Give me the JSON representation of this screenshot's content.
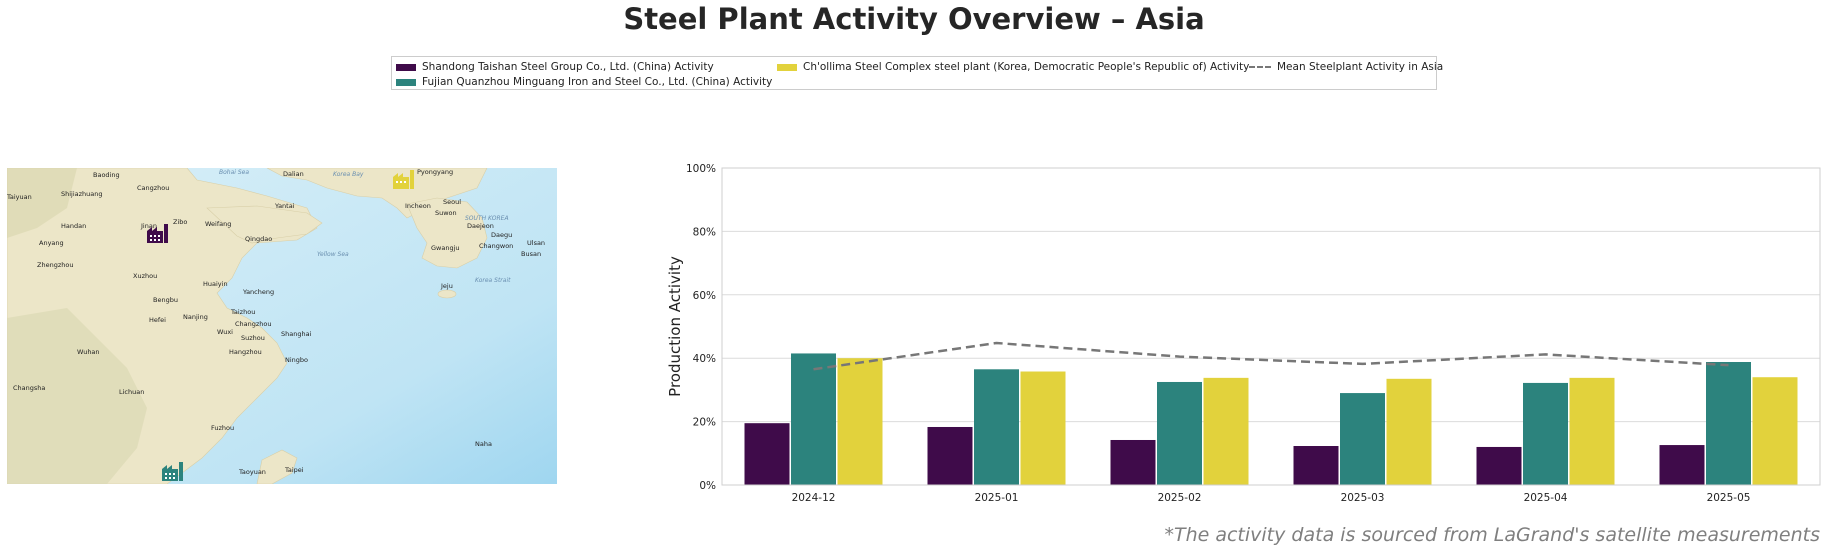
{
  "title": "Steel Plant Activity Overview – Asia",
  "footnote": "*The activity data is sourced from LaGrand's satellite measurements",
  "legend": {
    "items": [
      {
        "label": "Shandong Taishan Steel Group Co., Ltd. (China) Activity",
        "color": "#3f0b4a",
        "kind": "bar"
      },
      {
        "label": "Fujian Quanzhou Minguang Iron and Steel Co., Ltd. (China) Activity",
        "color": "#2c837d",
        "kind": "bar"
      },
      {
        "label": "Ch'ollima Steel Complex steel plant (Korea, Democratic People's Republic of) Activity",
        "color": "#e2d23c",
        "kind": "bar"
      },
      {
        "label": "Mean Steelplant Activity in Asia",
        "color": "#777777",
        "kind": "dashed-line"
      }
    ]
  },
  "map": {
    "labels": [
      {
        "text": "Baoding"
      },
      {
        "text": "Shijiazhuang"
      },
      {
        "text": "Cangzhou"
      },
      {
        "text": "Taiyuan"
      },
      {
        "text": "Jinan"
      },
      {
        "text": "Zibo"
      },
      {
        "text": "Weifang"
      },
      {
        "text": "Yantai"
      },
      {
        "text": "Qingdao"
      },
      {
        "text": "Handan"
      },
      {
        "text": "Anyang"
      },
      {
        "text": "Zhengzhou"
      },
      {
        "text": "Xuzhou"
      },
      {
        "text": "Huaiyin"
      },
      {
        "text": "Yancheng"
      },
      {
        "text": "Bengbu"
      },
      {
        "text": "Hefei"
      },
      {
        "text": "Nanjing"
      },
      {
        "text": "Taizhou"
      },
      {
        "text": "Changzhou"
      },
      {
        "text": "Wuxi"
      },
      {
        "text": "Suzhou"
      },
      {
        "text": "Shanghai"
      },
      {
        "text": "Hangzhou"
      },
      {
        "text": "Ningbo"
      },
      {
        "text": "Wuhan"
      },
      {
        "text": "Changsha"
      },
      {
        "text": "Lichuan"
      },
      {
        "text": "Fuzhou"
      },
      {
        "text": "Taoyuan"
      },
      {
        "text": "Taipei"
      },
      {
        "text": "Pyongyang"
      },
      {
        "text": "Incheon"
      },
      {
        "text": "Seoul"
      },
      {
        "text": "Suwon"
      },
      {
        "text": "SOUTH KOREA"
      },
      {
        "text": "Daejeon"
      },
      {
        "text": "Daegu"
      },
      {
        "text": "Gwangju"
      },
      {
        "text": "Changwon"
      },
      {
        "text": "Ulsan"
      },
      {
        "text": "Busan"
      },
      {
        "text": "Jeju"
      },
      {
        "text": "Naha"
      },
      {
        "text": "Dalian"
      },
      {
        "text": "Bohai Sea"
      },
      {
        "text": "Korea Bay"
      },
      {
        "text": "Yellow Sea"
      },
      {
        "text": "Korea Strait"
      }
    ]
  },
  "chart_data": {
    "type": "bar",
    "categories": [
      "2024-12",
      "2025-01",
      "2025-02",
      "2025-03",
      "2025-04",
      "2025-05"
    ],
    "series": [
      {
        "name": "Shandong Taishan Steel Group Co., Ltd. (China) Activity",
        "color": "#3f0b4a",
        "values": [
          19.5,
          18.3,
          14.2,
          12.3,
          12.0,
          12.6
        ]
      },
      {
        "name": "Fujian Quanzhou Minguang Iron and Steel Co., Ltd. (China) Activity",
        "color": "#2c837d",
        "values": [
          41.5,
          36.5,
          32.5,
          29.0,
          32.2,
          38.8
        ]
      },
      {
        "name": "Ch'ollima Steel Complex steel plant (Korea, Democratic People's Republic of) Activity",
        "color": "#e2d23c",
        "values": [
          40.0,
          35.8,
          33.8,
          33.5,
          33.8,
          34.0
        ]
      }
    ],
    "mean_line": {
      "name": "Mean Steelplant Activity in Asia",
      "color": "#777777",
      "values": [
        36.5,
        44.8,
        40.5,
        38.2,
        41.2,
        37.8
      ]
    },
    "ylabel": "Production Activity",
    "xlabel": "",
    "ylim": [
      0,
      100
    ],
    "yticks": [
      "0%",
      "20%",
      "40%",
      "60%",
      "80%",
      "100%"
    ],
    "grid": true
  }
}
